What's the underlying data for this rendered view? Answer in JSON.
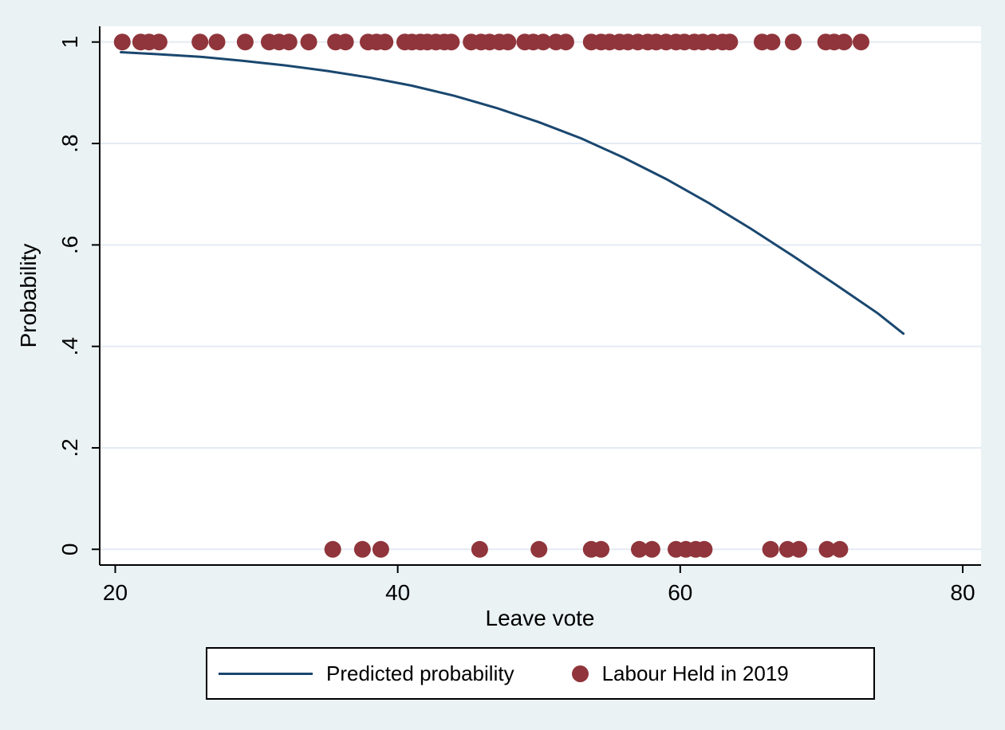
{
  "figure": {
    "background_color": "#eaf2f3",
    "plot_background_color": "#ffffff"
  },
  "chart_data": {
    "type": "scatter",
    "title": "",
    "xlabel": "Leave vote",
    "ylabel": "Probability",
    "xlim": [
      18.9,
      81.3
    ],
    "ylim": [
      -0.031,
      1.031
    ],
    "grid": "horizontal-only",
    "x_ticks": [
      {
        "value": 20,
        "label": "20"
      },
      {
        "value": 40,
        "label": "40"
      },
      {
        "value": 60,
        "label": "60"
      },
      {
        "value": 80,
        "label": "80"
      }
    ],
    "y_ticks": [
      {
        "value": 0,
        "label": "0"
      },
      {
        "value": 0.2,
        "label": ".2"
      },
      {
        "value": 0.4,
        "label": ".4"
      },
      {
        "value": 0.6,
        "label": ".6"
      },
      {
        "value": 0.8,
        "label": ".8"
      },
      {
        "value": 1,
        "label": "1"
      }
    ],
    "colors": {
      "line": "#1a476f",
      "marker": "#90353b",
      "grid": "#e3ebf2",
      "axis": "#000000"
    },
    "legend": {
      "position": "bottom-center",
      "entries": [
        {
          "label": "Predicted probability",
          "type": "line",
          "color": "#1a476f"
        },
        {
          "label": "Labour Held in 2019",
          "type": "circle",
          "color": "#90353b"
        }
      ]
    },
    "series": [
      {
        "name": "Predicted probability",
        "type": "line",
        "color": "#1a476f",
        "points": [
          [
            20.4,
            0.98
          ],
          [
            23,
            0.976
          ],
          [
            26,
            0.971
          ],
          [
            29,
            0.963
          ],
          [
            32,
            0.954
          ],
          [
            35,
            0.943
          ],
          [
            38,
            0.93
          ],
          [
            41,
            0.914
          ],
          [
            44,
            0.894
          ],
          [
            47,
            0.87
          ],
          [
            50,
            0.842
          ],
          [
            53,
            0.81
          ],
          [
            56,
            0.772
          ],
          [
            59,
            0.73
          ],
          [
            62,
            0.683
          ],
          [
            65,
            0.632
          ],
          [
            68,
            0.578
          ],
          [
            71,
            0.522
          ],
          [
            74,
            0.465
          ],
          [
            75.8,
            0.425
          ]
        ]
      },
      {
        "name": "Labour Held in 2019 = 1",
        "type": "scatter",
        "color": "#90353b",
        "y": 1,
        "x": [
          20.5,
          21.8,
          22.4,
          23.1,
          26.0,
          27.2,
          29.2,
          30.9,
          31.6,
          32.3,
          33.7,
          35.6,
          36.3,
          37.9,
          38.5,
          39.1,
          40.5,
          41.0,
          41.6,
          42.1,
          42.7,
          43.3,
          43.8,
          45.2,
          45.9,
          46.5,
          47.2,
          47.8,
          49.0,
          49.6,
          50.3,
          51.2,
          51.9,
          53.7,
          54.4,
          55.0,
          55.7,
          56.3,
          57.0,
          57.7,
          58.3,
          59.0,
          59.7,
          60.3,
          61.0,
          61.6,
          62.3,
          63.0,
          63.5,
          65.8,
          66.5,
          68.0,
          70.3,
          70.9,
          71.6,
          72.8
        ]
      },
      {
        "name": "Labour Held in 2019 = 0",
        "type": "scatter",
        "color": "#90353b",
        "y": 0,
        "x": [
          35.4,
          37.5,
          38.8,
          45.8,
          50.0,
          53.7,
          54.4,
          57.1,
          58.0,
          59.7,
          60.4,
          61.1,
          61.7,
          66.4,
          67.6,
          68.4,
          70.4,
          71.3
        ]
      }
    ]
  }
}
